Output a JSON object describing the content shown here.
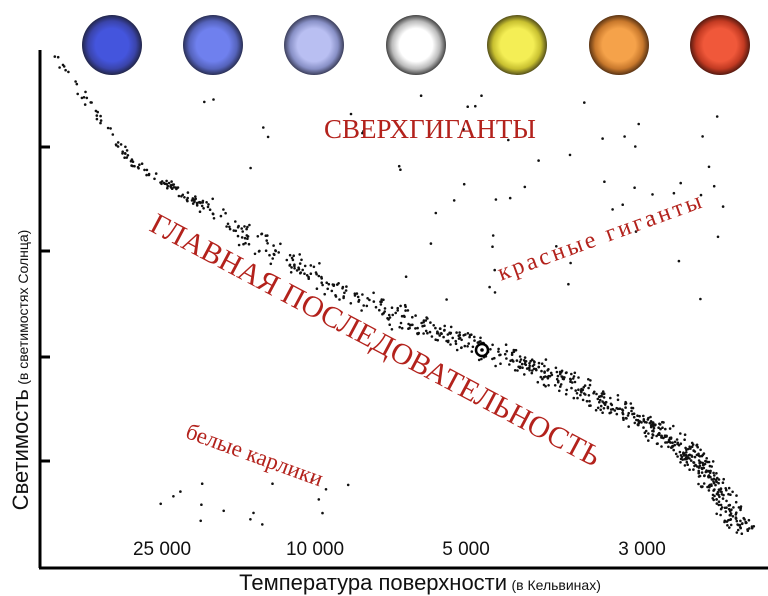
{
  "axes": {
    "y_label": "Светимость",
    "y_label_note": "(в светимостях Солнца)",
    "x_label": "Температура поверхности",
    "x_label_note": "(в Кельвинах)",
    "x_tick_labels": [
      "25 000",
      "10 000",
      "5 000",
      "3 000"
    ]
  },
  "regions": {
    "supergiants": "СВЕРХГИГАНТЫ",
    "main_sequence": "ГЛАВНАЯ ПОСЛЕДОВАТЕЛЬНОСТЬ",
    "red_giants": "красные гиганты",
    "white_dwarfs": "белые карлики"
  }
}
